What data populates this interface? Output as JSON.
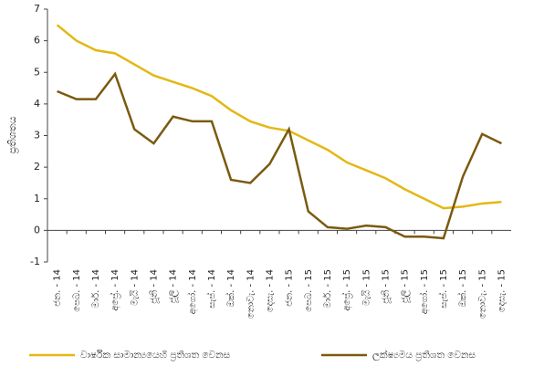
{
  "chart_data": {
    "type": "line",
    "ylabel": "ප්‍රතිශතය",
    "categories": [
      "ජන. - 14",
      "පෙබ. - 14",
      "මාර්. - 14",
      "අප්‍රේ. - 14",
      "මැයි - 14",
      "ජූනි - 14",
      "ජූලි - 14",
      "අගෝ. - 14",
      "සැප්. - 14",
      "ඔක්. - 14",
      "නොවැ. - 14",
      "දෙසැ. - 14",
      "ජන. - 15",
      "පෙබ. - 15",
      "මාර්. - 15",
      "අප්‍රේ. - 15",
      "මැයි - 15",
      "ජූනි - 15",
      "ජූලි - 15",
      "අගෝ. - 15",
      "සැප්. - 15",
      "ඔක්. - 15",
      "නොවැ. - 15",
      "දෙසැ. - 15"
    ],
    "series": [
      {
        "name": "වාර්ෂික සාමාන්‍යයෙහි ප්‍රතිශත වෙනස",
        "color": "#e3b814",
        "values": [
          6.5,
          6.0,
          5.7,
          5.6,
          5.25,
          4.9,
          4.7,
          4.5,
          4.25,
          3.8,
          3.45,
          3.25,
          3.15,
          2.85,
          2.55,
          2.15,
          1.9,
          1.65,
          1.3,
          1.0,
          0.7,
          0.75,
          0.85,
          0.9
        ]
      },
      {
        "name": "ලක්ෂ්‍යමය ප්‍රතිශත වෙනස",
        "color": "#7a5a10",
        "values": [
          4.4,
          4.15,
          4.15,
          4.95,
          3.2,
          2.75,
          3.6,
          3.45,
          3.45,
          1.6,
          1.5,
          2.1,
          3.2,
          0.6,
          0.1,
          0.05,
          0.15,
          0.1,
          -0.2,
          -0.2,
          -0.25,
          1.7,
          3.05,
          2.75
        ]
      }
    ],
    "ylim": [
      -1,
      7
    ],
    "yticks": [
      -1,
      0,
      1,
      2,
      3,
      4,
      5,
      6,
      7
    ],
    "legend": "bottom"
  }
}
